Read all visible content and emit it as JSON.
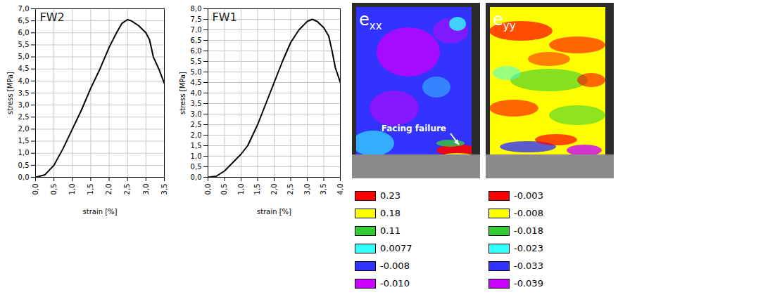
{
  "chart_data": [
    {
      "type": "line",
      "title": "FW2",
      "xlabel": "strain [%]",
      "ylabel": "stress [MPa]",
      "color": "#000000",
      "grid": true,
      "x": [
        0,
        0.25,
        0.5,
        0.75,
        1.0,
        1.25,
        1.5,
        1.75,
        2.0,
        2.2,
        2.35,
        2.5,
        2.6,
        2.8,
        3.0,
        3.1,
        3.2,
        3.35,
        3.5
      ],
      "values": [
        0,
        0.1,
        0.5,
        1.2,
        2.0,
        2.8,
        3.7,
        4.5,
        5.4,
        6.0,
        6.4,
        6.55,
        6.5,
        6.3,
        6.0,
        5.7,
        5.0,
        4.5,
        3.9
      ],
      "xlim": [
        0,
        3.5
      ],
      "ylim": [
        0,
        7
      ],
      "xticks": [
        {
          "value": 0,
          "label": "0,0"
        },
        {
          "value": 0.5,
          "label": "0,5"
        },
        {
          "value": 1,
          "label": "1,0"
        },
        {
          "value": 1.5,
          "label": "1,5"
        },
        {
          "value": 2,
          "label": "2,0"
        },
        {
          "value": 2.5,
          "label": "2,5"
        },
        {
          "value": 3,
          "label": "3,0"
        },
        {
          "value": 3.5,
          "label": "3,5"
        }
      ],
      "yticks": [
        {
          "value": 0,
          "label": "0,0"
        },
        {
          "value": 0.5,
          "label": "0,5"
        },
        {
          "value": 1,
          "label": "1,0"
        },
        {
          "value": 1.5,
          "label": "1,5"
        },
        {
          "value": 2,
          "label": "2,0"
        },
        {
          "value": 2.5,
          "label": "2,5"
        },
        {
          "value": 3,
          "label": "3,0"
        },
        {
          "value": 3.5,
          "label": "3,5"
        },
        {
          "value": 4,
          "label": "4,0"
        },
        {
          "value": 4.5,
          "label": "4,5"
        },
        {
          "value": 5,
          "label": "5,0"
        },
        {
          "value": 5.5,
          "label": "5,5"
        },
        {
          "value": 6,
          "label": "6,0"
        },
        {
          "value": 6.5,
          "label": "6,5"
        },
        {
          "value": 7,
          "label": "7,0"
        }
      ]
    },
    {
      "type": "line",
      "title": "FW1",
      "xlabel": "strain [%]",
      "ylabel": "stress [MPa]",
      "color": "#000000",
      "grid": true,
      "x": [
        0,
        0.25,
        0.5,
        0.75,
        1.0,
        1.2,
        1.5,
        1.75,
        2.0,
        2.25,
        2.5,
        2.75,
        3.0,
        3.15,
        3.3,
        3.5,
        3.65,
        3.75,
        3.85,
        4.0
      ],
      "values": [
        0,
        0.05,
        0.3,
        0.7,
        1.1,
        1.5,
        2.5,
        3.5,
        4.5,
        5.5,
        6.4,
        7.0,
        7.4,
        7.5,
        7.4,
        7.1,
        6.7,
        6.0,
        5.2,
        4.5
      ],
      "xlim": [
        0,
        4
      ],
      "ylim": [
        0,
        8
      ],
      "xticks": [
        {
          "value": 0,
          "label": "0,0"
        },
        {
          "value": 0.5,
          "label": "0,5"
        },
        {
          "value": 1,
          "label": "1,0"
        },
        {
          "value": 1.5,
          "label": "1,5"
        },
        {
          "value": 2,
          "label": "2,0"
        },
        {
          "value": 2.5,
          "label": "2,5"
        },
        {
          "value": 3,
          "label": "3,0"
        },
        {
          "value": 3.5,
          "label": "3,5"
        },
        {
          "value": 4,
          "label": "4,0"
        }
      ],
      "yticks": [
        {
          "value": 0,
          "label": "0,0"
        },
        {
          "value": 0.5,
          "label": "0,5"
        },
        {
          "value": 1,
          "label": "1,0"
        },
        {
          "value": 1.5,
          "label": "1,5"
        },
        {
          "value": 2,
          "label": "2,0"
        },
        {
          "value": 2.5,
          "label": "2,5"
        },
        {
          "value": 3,
          "label": "3,0"
        },
        {
          "value": 3.5,
          "label": "3,5"
        },
        {
          "value": 4,
          "label": "4,0"
        },
        {
          "value": 4.5,
          "label": "4,5"
        },
        {
          "value": 5,
          "label": "5,0"
        },
        {
          "value": 5.5,
          "label": "5,5"
        },
        {
          "value": 6,
          "label": "6,0"
        },
        {
          "value": 6.5,
          "label": "6,5"
        },
        {
          "value": 7,
          "label": "7,0"
        },
        {
          "value": 7.5,
          "label": "7,5"
        },
        {
          "value": 8,
          "label": "8,0"
        }
      ]
    }
  ],
  "strain_maps": [
    {
      "symbol": "e",
      "subscript": "xx",
      "annotation": "Facing failure",
      "legend": [
        {
          "color": "#ff0000",
          "value": 0.23
        },
        {
          "color": "#ffff00",
          "value": 0.18
        },
        {
          "color": "#33cc33",
          "value": 0.11
        },
        {
          "color": "#33ffff",
          "value": 0.0077
        },
        {
          "color": "#3333ff",
          "value": -0.008
        },
        {
          "color": "#cc00ff",
          "value": -0.01,
          "label": "-0.010"
        }
      ]
    },
    {
      "symbol": "e",
      "subscript": "yy",
      "legend": [
        {
          "color": "#ff0000",
          "value": -0.003
        },
        {
          "color": "#ffff00",
          "value": -0.008
        },
        {
          "color": "#33cc33",
          "value": -0.018
        },
        {
          "color": "#33ffff",
          "value": -0.023
        },
        {
          "color": "#3333ff",
          "value": -0.033
        },
        {
          "color": "#cc00ff",
          "value": -0.039
        }
      ]
    }
  ]
}
